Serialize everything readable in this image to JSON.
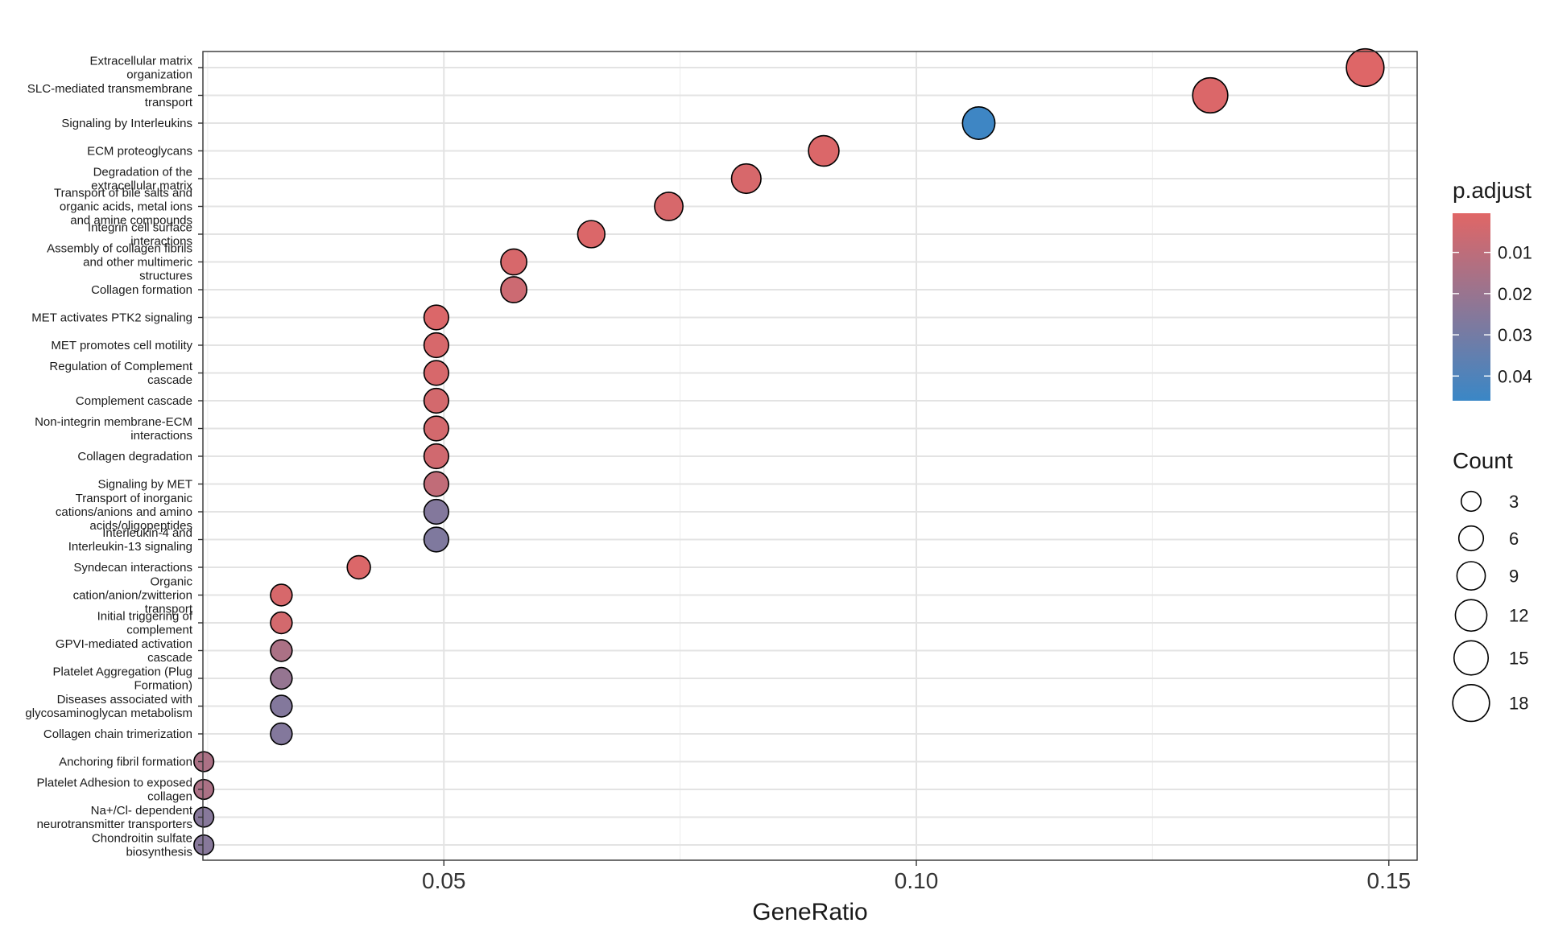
{
  "chart_data": {
    "type": "scatter",
    "xlabel": "GeneRatio",
    "xlim": [
      0.0245,
      0.153
    ],
    "xticks": [
      {
        "value": 0.05,
        "label": "0.05"
      },
      {
        "value": 0.1,
        "label": "0.10"
      },
      {
        "value": 0.15,
        "label": "0.15"
      }
    ],
    "grid": true,
    "legend_position": "right",
    "color_legend": {
      "title": "p.adjust",
      "low_color": "#E06666",
      "high_color": "#3A87C6",
      "range": [
        0.0005,
        0.046
      ],
      "ticks": [
        {
          "value": 0.01,
          "label": "0.01"
        },
        {
          "value": 0.02,
          "label": "0.02"
        },
        {
          "value": 0.03,
          "label": "0.03"
        },
        {
          "value": 0.04,
          "label": "0.04"
        }
      ]
    },
    "size_legend": {
      "title": "Count",
      "values": [
        {
          "value": 3,
          "label": "3"
        },
        {
          "value": 6,
          "label": "6"
        },
        {
          "value": 9,
          "label": "9"
        },
        {
          "value": 12,
          "label": "12"
        },
        {
          "value": 15,
          "label": "15"
        },
        {
          "value": 18,
          "label": "18"
        }
      ]
    },
    "points": [
      {
        "label": "Extracellular matrix organization",
        "lines": [
          "Extracellular matrix",
          "organization"
        ],
        "gene_ratio": 0.1475,
        "count": 19,
        "p_adjust": 0.001
      },
      {
        "label": "SLC-mediated transmembrane transport",
        "lines": [
          "SLC-mediated transmembrane",
          "transport"
        ],
        "gene_ratio": 0.1311,
        "count": 16,
        "p_adjust": 0.002
      },
      {
        "label": "Signaling by Interleukins",
        "lines": [
          "Signaling by Interleukins"
        ],
        "gene_ratio": 0.1066,
        "count": 13,
        "p_adjust": 0.045
      },
      {
        "label": "ECM proteoglycans",
        "lines": [
          "ECM proteoglycans"
        ],
        "gene_ratio": 0.0902,
        "count": 11,
        "p_adjust": 0.002
      },
      {
        "label": "Degradation of the extracellular matrix",
        "lines": [
          "Degradation of the",
          "extracellular matrix"
        ],
        "gene_ratio": 0.082,
        "count": 10,
        "p_adjust": 0.003
      },
      {
        "label": "Transport of bile salts and organic acids, metal ions and amine compounds",
        "lines": [
          "Transport of bile salts and",
          "organic acids, metal ions",
          "and amine compounds"
        ],
        "gene_ratio": 0.0738,
        "count": 9,
        "p_adjust": 0.003
      },
      {
        "label": "Integrin cell surface interactions",
        "lines": [
          "Integrin cell surface",
          "interactions"
        ],
        "gene_ratio": 0.0656,
        "count": 8,
        "p_adjust": 0.002
      },
      {
        "label": "Assembly of collagen fibrils and other multimeric structures",
        "lines": [
          "Assembly of collagen fibrils",
          "and other multimeric",
          "structures"
        ],
        "gene_ratio": 0.0574,
        "count": 7,
        "p_adjust": 0.003
      },
      {
        "label": "Collagen formation",
        "lines": [
          "Collagen formation"
        ],
        "gene_ratio": 0.0574,
        "count": 7,
        "p_adjust": 0.006
      },
      {
        "label": "MET activates PTK2 signaling",
        "lines": [
          "MET activates PTK2 signaling"
        ],
        "gene_ratio": 0.0492,
        "count": 6,
        "p_adjust": 0.002
      },
      {
        "label": "MET promotes cell motility",
        "lines": [
          "MET promotes cell motility"
        ],
        "gene_ratio": 0.0492,
        "count": 6,
        "p_adjust": 0.003
      },
      {
        "label": "Regulation of Complement cascade",
        "lines": [
          "Regulation of Complement",
          "cascade"
        ],
        "gene_ratio": 0.0492,
        "count": 6,
        "p_adjust": 0.003
      },
      {
        "label": "Complement cascade",
        "lines": [
          "Complement cascade"
        ],
        "gene_ratio": 0.0492,
        "count": 6,
        "p_adjust": 0.004
      },
      {
        "label": "Non-integrin membrane-ECM interactions",
        "lines": [
          "Non-integrin membrane-ECM",
          "interactions"
        ],
        "gene_ratio": 0.0492,
        "count": 6,
        "p_adjust": 0.004
      },
      {
        "label": "Collagen degradation",
        "lines": [
          "Collagen degradation"
        ],
        "gene_ratio": 0.0492,
        "count": 6,
        "p_adjust": 0.005
      },
      {
        "label": "Signaling by MET",
        "lines": [
          "Signaling by MET"
        ],
        "gene_ratio": 0.0492,
        "count": 6,
        "p_adjust": 0.009
      },
      {
        "label": "Transport of inorganic cations/anions and amino acids/oligopeptides",
        "lines": [
          "Transport of inorganic",
          "cations/anions and amino",
          "acids/oligopeptides"
        ],
        "gene_ratio": 0.0492,
        "count": 6,
        "p_adjust": 0.026
      },
      {
        "label": "Interleukin-4 and Interleukin-13 signaling",
        "lines": [
          "Interleukin-4 and",
          "Interleukin-13 signaling"
        ],
        "gene_ratio": 0.0492,
        "count": 6,
        "p_adjust": 0.027
      },
      {
        "label": "Syndecan interactions",
        "lines": [
          "Syndecan interactions"
        ],
        "gene_ratio": 0.041,
        "count": 5,
        "p_adjust": 0.002
      },
      {
        "label": "Organic cation/anion/zwitterion transport",
        "lines": [
          "Organic",
          "cation/anion/zwitterion",
          "transport"
        ],
        "gene_ratio": 0.0328,
        "count": 4,
        "p_adjust": 0.003
      },
      {
        "label": "Initial triggering of complement",
        "lines": [
          "Initial triggering of",
          "complement"
        ],
        "gene_ratio": 0.0328,
        "count": 4,
        "p_adjust": 0.004
      },
      {
        "label": "GPVI-mediated activation cascade",
        "lines": [
          "GPVI-mediated activation",
          "cascade"
        ],
        "gene_ratio": 0.0328,
        "count": 4,
        "p_adjust": 0.015
      },
      {
        "label": "Platelet Aggregation (Plug Formation)",
        "lines": [
          "Platelet Aggregation (Plug",
          "Formation)"
        ],
        "gene_ratio": 0.0328,
        "count": 4,
        "p_adjust": 0.021
      },
      {
        "label": "Diseases associated with glycosaminoglycan metabolism",
        "lines": [
          "Diseases associated with",
          "glycosaminoglycan metabolism"
        ],
        "gene_ratio": 0.0328,
        "count": 4,
        "p_adjust": 0.026
      },
      {
        "label": "Collagen chain trimerization",
        "lines": [
          "Collagen chain trimerization"
        ],
        "gene_ratio": 0.0328,
        "count": 4,
        "p_adjust": 0.026
      },
      {
        "label": "Anchoring fibril formation",
        "lines": [
          "Anchoring fibril formation"
        ],
        "gene_ratio": 0.0246,
        "count": 3,
        "p_adjust": 0.015
      },
      {
        "label": "Platelet Adhesion to exposed collagen",
        "lines": [
          "Platelet Adhesion to exposed",
          "collagen"
        ],
        "gene_ratio": 0.0246,
        "count": 3,
        "p_adjust": 0.015
      },
      {
        "label": "Na+/Cl- dependent neurotransmitter transporters",
        "lines": [
          "Na+/Cl- dependent",
          "neurotransmitter transporters"
        ],
        "gene_ratio": 0.0246,
        "count": 3,
        "p_adjust": 0.025
      },
      {
        "label": "Chondroitin sulfate biosynthesis",
        "lines": [
          "Chondroitin sulfate",
          "biosynthesis"
        ],
        "gene_ratio": 0.0246,
        "count": 3,
        "p_adjust": 0.025
      }
    ]
  }
}
